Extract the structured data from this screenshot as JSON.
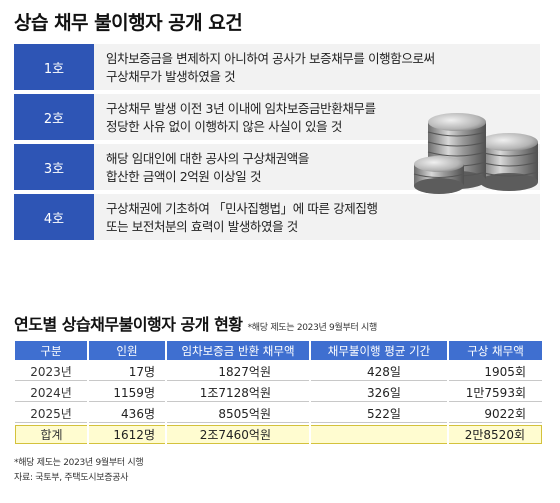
{
  "title": "상습 채무 불이행자 공개 요건",
  "requirements": [
    {
      "num": "1호",
      "line1": "임차보증금을 변제하지 아니하여 공사가 보증채무를 이행함으로써",
      "line2": "구상채무가 발생하였을 것"
    },
    {
      "num": "2호",
      "line1": "구상채무 발생 이전 3년 이내에 임차보증금반환채무를",
      "line2": "정당한 사유 없이 이행하지 않은 사실이 있을 것"
    },
    {
      "num": "3호",
      "line1": "해당 임대인에 대한 공사의 구상채권액을",
      "line2": "합산한 금액이 2억원 이상일 것"
    },
    {
      "num": "4호",
      "line1": "구상채권에 기초하여 「민사집행법」에 따른 강제집행",
      "line2": "또는 보전처분의 효력이 발생하였을 것"
    }
  ],
  "table_title": "연도별 상습채무불이행자 공개 현황",
  "table_title_note": "*해당 제도는 2023년 9월부터 시행",
  "table": {
    "headers": [
      "구분",
      "인원",
      "임차보증금 반환 채무액",
      "채무불이행 평균 기간",
      "구상 채무액"
    ],
    "rows": [
      [
        "2023년",
        "17명",
        "1827억원",
        "428일",
        "1905회"
      ],
      [
        "2024년",
        "1159명",
        "1조7128억원",
        "326일",
        "1만7593회"
      ],
      [
        "2025년",
        "436명",
        "8505억원",
        "522일",
        "9022회"
      ]
    ],
    "total": [
      "합계",
      "1612명",
      "2조7460억원",
      "",
      "2만8520회"
    ]
  },
  "footnote": "*해당 제도는 2023년 9월부터 시행",
  "source": "자료: 국토부, 주택도시보증공사",
  "colors": {
    "header_blue": "#3f6fd0",
    "num_blue": "#2e55b5",
    "total_bg": "#fffcd0"
  }
}
